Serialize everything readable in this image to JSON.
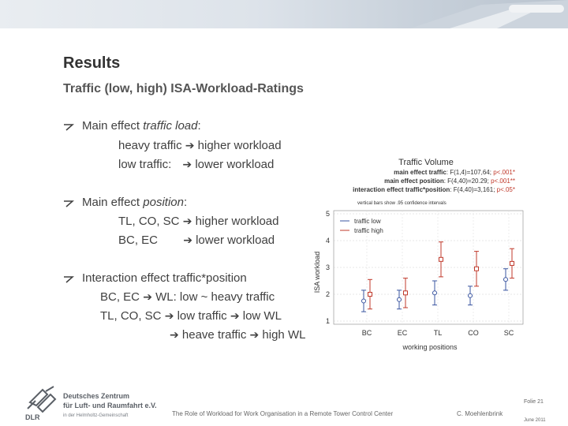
{
  "slide": {
    "title": "Results",
    "subtitle": "Traffic (low, high) ISA-Workload-Ratings"
  },
  "bullets": [
    {
      "lead": "Main effect ",
      "italic": "traffic load",
      "tail": ":",
      "lines": [
        {
          "a": "heavy traffic ",
          "b": " higher workload"
        },
        {
          "a": "low traffic:  ",
          "b": " lower workload"
        }
      ]
    },
    {
      "lead": "Main effect ",
      "italic": "position",
      "tail": ":",
      "lines": [
        {
          "a": "TL, CO, SC ",
          "b": " higher workload"
        },
        {
          "a": "BC, EC       ",
          "b": " lower workload"
        }
      ]
    },
    {
      "lead": "Interaction effect traffic*position",
      "lines": [
        {
          "a": "BC, EC ",
          "b": " WL: low ~ heavy traffic"
        },
        {
          "a": "TL, CO, SC ",
          "b": " low traffic ",
          "c": " low WL"
        },
        {
          "a": "",
          "b": " heave traffic ",
          "c": " high WL"
        }
      ]
    }
  ],
  "chart_data": {
    "type": "line",
    "title": "Traffic Volume",
    "stats": [
      {
        "label": "main effect traffic",
        "value": ": F(1,4)=107,64; ",
        "p": "p<.001*"
      },
      {
        "label": "main effect position",
        "value": ": F(4,40)=20.29; ",
        "p": "p<.001**"
      },
      {
        "label": "interaction effect traffic*position",
        "value": ": F(4,40)=3,161; ",
        "p": "p<.05*"
      }
    ],
    "note": "vertical bars show .95 confidence intervals",
    "xlabel": "working positions",
    "ylabel": "ISA workload",
    "categories": [
      "BC",
      "EC",
      "TL",
      "CO",
      "SC"
    ],
    "yticks": [
      "1",
      "2",
      "3",
      "4",
      "5"
    ],
    "ylim": [
      1,
      5
    ],
    "series": [
      {
        "name": "traffic low",
        "color": "#3a55a0",
        "values": [
          1.75,
          1.8,
          2.05,
          1.95,
          2.55
        ],
        "low": [
          1.35,
          1.45,
          1.6,
          1.6,
          2.15
        ],
        "high": [
          2.15,
          2.15,
          2.5,
          2.3,
          2.95
        ]
      },
      {
        "name": "traffic high",
        "color": "#c0392b",
        "values": [
          2.0,
          2.05,
          3.3,
          2.95,
          3.15
        ],
        "low": [
          1.45,
          1.5,
          2.65,
          2.3,
          2.6
        ],
        "high": [
          2.55,
          2.6,
          3.95,
          3.6,
          3.7
        ]
      }
    ]
  },
  "footer": {
    "org_line1": "Deutsches Zentrum",
    "org_line2": "für Luft- und Raumfahrt e.V.",
    "org_line3": "in der Helmholtz-Gemeinschaft",
    "org_short": "DLR",
    "presentation": "The Role of Workload for Work Organisation in a Remote Tower Control Center",
    "author": "C. Moehlenbrink",
    "folie": "Folie 21",
    "date": "June 2011"
  }
}
